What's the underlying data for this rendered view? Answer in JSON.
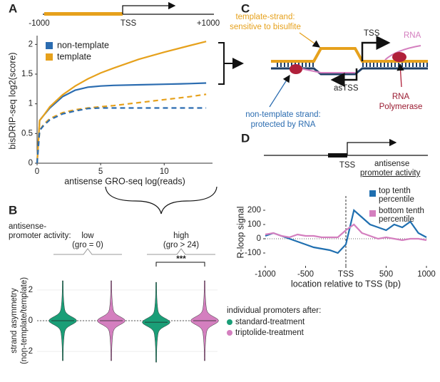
{
  "figure": {
    "panels": [
      "A",
      "B",
      "C",
      "D"
    ]
  },
  "chart_data": [
    {
      "type": "line",
      "xlabel": "antisense GRO-seq log(reads)",
      "ylabel": "bisDRIP-seq log2(score)",
      "xlim": [
        0,
        13.8
      ],
      "ylim": [
        0,
        2.1
      ],
      "xticks": [
        0,
        5,
        10
      ],
      "yticks": [
        0,
        0.5,
        1,
        1.5,
        2
      ],
      "legend": "upper left",
      "x": [
        0,
        0.2,
        0.5,
        1,
        2,
        3,
        4,
        5,
        6,
        8,
        10,
        12,
        13.3
      ],
      "series": [
        {
          "name": "non-template",
          "color": "#2b6cb0",
          "values": [
            0,
            0.72,
            0.8,
            0.93,
            1.12,
            1.23,
            1.28,
            1.3,
            1.31,
            1.32,
            1.33,
            1.34,
            1.35
          ]
        },
        {
          "name": "template",
          "color": "#e6a11c",
          "values": [
            0,
            0.72,
            0.8,
            0.95,
            1.15,
            1.3,
            1.42,
            1.52,
            1.6,
            1.75,
            1.87,
            1.98,
            2.05
          ]
        },
        {
          "color": "#e6a11c",
          "dash": true,
          "values": [
            0,
            0.55,
            0.65,
            0.75,
            0.85,
            0.9,
            0.93,
            0.95,
            0.97,
            1.02,
            1.07,
            1.12,
            1.16
          ]
        },
        {
          "color": "#2b6cb0",
          "dash": true,
          "values": [
            0,
            0.55,
            0.63,
            0.73,
            0.83,
            0.88,
            0.92,
            0.93,
            0.93,
            0.93,
            0.93,
            0.93,
            0.93
          ]
        }
      ],
      "schematic": [
        "-1000",
        "TSS",
        "+1000"
      ]
    },
    {
      "type": "violin",
      "ylabel_lines": [
        "strand asymmetry",
        "(non-template/template)"
      ],
      "ylim": [
        -3.2,
        3.2
      ],
      "yticks": [
        -2,
        0,
        2
      ],
      "group_title_lines": [
        "antisense-",
        "promoter activity:"
      ],
      "groups": [
        [
          "low",
          "(gro = 0)"
        ],
        [
          "high",
          "(gro > 24)"
        ]
      ],
      "annotation": "***",
      "legend_title": "individual promoters after:",
      "series": [
        {
          "name": "standard-treatment",
          "color": "#1a9e77",
          "values": [
            0,
            -0.1
          ]
        },
        {
          "name": "triptolide-treatment",
          "color": "#d47fbf",
          "values": [
            0,
            0
          ]
        }
      ]
    },
    {
      "type": "line",
      "xlabel": "location relative to TSS (bp)",
      "ylabel": "R-loop signal",
      "xlim": [
        -1000,
        1000
      ],
      "ylim": [
        -190,
        280
      ],
      "xticks": [
        -1000,
        -500,
        {
          "value": 0,
          "label": "TSS"
        },
        500,
        1000
      ],
      "yticks": [
        -100,
        0,
        100,
        200
      ],
      "legend_title_lines": [
        "antisense",
        "promoter activity"
      ],
      "x": [
        -1000,
        -900,
        -800,
        -700,
        -600,
        -500,
        -400,
        -300,
        -200,
        -100,
        0,
        100,
        200,
        300,
        400,
        500,
        600,
        700,
        800,
        900,
        1000
      ],
      "series": [
        {
          "name": "top tenth percentile",
          "color": "#1f6fb0",
          "values": [
            20,
            40,
            20,
            0,
            -20,
            -40,
            -60,
            -70,
            -80,
            -100,
            -40,
            200,
            150,
            100,
            80,
            60,
            100,
            80,
            120,
            40,
            10
          ]
        },
        {
          "name": "bottom tenth percentile",
          "color": "#d47fbf",
          "values": [
            30,
            40,
            20,
            10,
            30,
            20,
            20,
            10,
            10,
            10,
            60,
            100,
            40,
            20,
            0,
            10,
            0,
            -10,
            0,
            0,
            -10
          ]
        }
      ],
      "schematic": [
        "TSS"
      ]
    }
  ],
  "diagram": {
    "template_lines": [
      "template-strand:",
      "sensitive to bisulfite"
    ],
    "nontemplate_lines": [
      "non-template strand:",
      "protected by RNA"
    ],
    "tss": "TSS",
    "rna": "RNA",
    "astss": "asTSS",
    "polymerase_lines": [
      "RNA",
      "Polymerase"
    ]
  }
}
